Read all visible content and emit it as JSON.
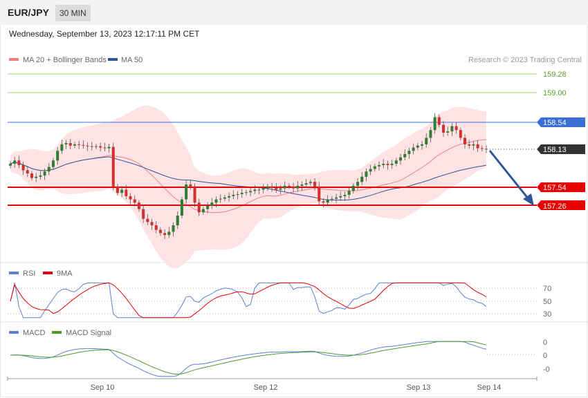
{
  "header": {
    "symbol": "EUR/JPY",
    "timeframe": "30 MIN"
  },
  "datetime": "Wednesday, September 13, 2023 12:17:11 PM CET",
  "legend_main": [
    {
      "name": "MA 20 + Bollinger Bands",
      "color": "#f08080"
    },
    {
      "name": "MA 50",
      "color": "#2f5597"
    }
  ],
  "copyright": "Research © 2023 Trading Central",
  "legend_rsi": [
    {
      "name": "RSI",
      "color": "#5b7fd4"
    },
    {
      "name": "9MA",
      "color": "#e60000"
    }
  ],
  "legend_macd": [
    {
      "name": "MACD",
      "color": "#5b7fd4"
    },
    {
      "name": "MACD Signal",
      "color": "#4c9a2a"
    }
  ],
  "colors": {
    "support": "#e60000",
    "resistance_green": "#7fbf3f",
    "resistance_blue": "#3b6fd6",
    "current": "#333333",
    "candle_up": "#2e7d32",
    "candle_down": "#d32f2f",
    "arrow": "#2f5597",
    "band": "#fde0e0"
  },
  "chart_data": {
    "type": "candlestick",
    "price_axis": {
      "min": 156.95,
      "max": 159.4
    },
    "levels": [
      {
        "price": 159.28,
        "label": "159.28",
        "kind": "resistance",
        "color": "#7fbf3f"
      },
      {
        "price": 159.0,
        "label": "159.00",
        "kind": "resistance",
        "color": "#7fbf3f"
      },
      {
        "price": 158.54,
        "label": "158.54",
        "kind": "resistance",
        "color": "#3b6fd6"
      },
      {
        "price": 158.13,
        "label": "158.13",
        "kind": "current",
        "color": "#333333"
      },
      {
        "price": 157.54,
        "label": "157.54",
        "kind": "support",
        "color": "#e60000"
      },
      {
        "price": 157.26,
        "label": "157.26",
        "kind": "support",
        "color": "#e60000"
      }
    ],
    "x_ticks": [
      "Sep 10",
      "Sep 12",
      "Sep 13",
      "Sep 14"
    ],
    "forecast_arrow": {
      "from_price": 158.13,
      "to_price": 157.26
    },
    "rsi": {
      "levels": [
        70,
        50,
        30
      ]
    },
    "macd": {
      "levels": [
        "0",
        "0",
        "-0"
      ]
    },
    "close_series": [
      157.9,
      157.95,
      157.88,
      157.8,
      157.75,
      157.68,
      157.7,
      157.72,
      157.78,
      157.85,
      157.95,
      158.1,
      158.2,
      158.22,
      158.18,
      158.2,
      158.19,
      158.18,
      158.17,
      158.16,
      158.17,
      158.15,
      158.14,
      158.16,
      157.55,
      157.45,
      157.5,
      157.4,
      157.35,
      157.3,
      157.2,
      157.05,
      157.0,
      156.95,
      156.88,
      156.83,
      156.8,
      156.85,
      156.95,
      157.1,
      157.35,
      157.58,
      157.55,
      157.3,
      157.15,
      157.2,
      157.25,
      157.3,
      157.35,
      157.36,
      157.38,
      157.4,
      157.42,
      157.43,
      157.45,
      157.46,
      157.48,
      157.5,
      157.5,
      157.52,
      157.55,
      157.53,
      157.5,
      157.52,
      157.56,
      157.55,
      157.52,
      157.56,
      157.58,
      157.6,
      157.62,
      157.55,
      157.32,
      157.3,
      157.35,
      157.36,
      157.38,
      157.4,
      157.42,
      157.48,
      157.56,
      157.62,
      157.7,
      157.78,
      157.82,
      157.86,
      157.88,
      157.9,
      157.88,
      157.9,
      157.95,
      158.0,
      158.05,
      158.1,
      158.15,
      158.18,
      158.2,
      158.3,
      158.42,
      158.62,
      158.5,
      158.38,
      158.4,
      158.48,
      158.42,
      158.3,
      158.2,
      158.18,
      158.2,
      158.14,
      158.13,
      158.13
    ]
  }
}
